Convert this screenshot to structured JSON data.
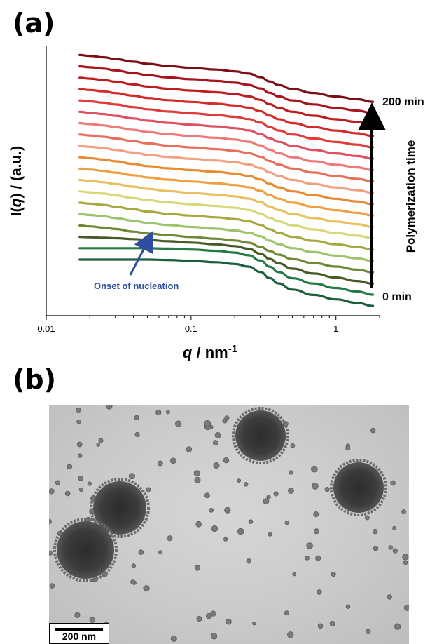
{
  "panels": {
    "a_label": "(a)",
    "b_label": "(b)"
  },
  "chart_data": {
    "type": "line",
    "xscale": "log",
    "xlim": [
      0.01,
      2
    ],
    "xticks": [
      {
        "value": 0.01,
        "label": "0.01"
      },
      {
        "value": 0.1,
        "label": "0.1"
      },
      {
        "value": 1,
        "label": "1"
      }
    ],
    "xlabel_italic": "q",
    "xlabel_rest": " / nm",
    "xlabel_sup": "-1",
    "ylabel_pre": "I(",
    "ylabel_italic": "q",
    "ylabel_post": ") / (a.u.)",
    "y_ticks_shown": false,
    "arrow_top_label": "200 min",
    "arrow_bottom_label": "0 min",
    "arrow_side_label": "Polymerization time",
    "annotation": "Onset of nucleation",
    "annotation_color": "#2f4ea0",
    "x": [
      0.017,
      0.02,
      0.025,
      0.03,
      0.04,
      0.05,
      0.07,
      0.1,
      0.15,
      0.2,
      0.25,
      0.3,
      0.35,
      0.4,
      0.5,
      0.7,
      1.0,
      1.4,
      1.8
    ],
    "series": [
      {
        "color": "#1d5e3e",
        "values": [
          0,
          0,
          0,
          0,
          0,
          0,
          0.01,
          0.03,
          0.06,
          0.1,
          0.16,
          0.28,
          0.42,
          0.54,
          0.68,
          0.8,
          0.9,
          0.98,
          1.05
        ]
      },
      {
        "color": "#237a45",
        "values": [
          0,
          0,
          0,
          0,
          0,
          0,
          0.01,
          0.03,
          0.06,
          0.1,
          0.16,
          0.28,
          0.42,
          0.54,
          0.68,
          0.8,
          0.9,
          0.98,
          1.05
        ]
      },
      {
        "color": "#4a5a26",
        "values": [
          0,
          0.01,
          0.02,
          0.03,
          0.05,
          0.07,
          0.1,
          0.13,
          0.17,
          0.21,
          0.27,
          0.38,
          0.5,
          0.6,
          0.72,
          0.83,
          0.92,
          1.0,
          1.06
        ]
      },
      {
        "color": "#6e8a36",
        "values": [
          0,
          0.02,
          0.05,
          0.08,
          0.14,
          0.18,
          0.22,
          0.26,
          0.3,
          0.34,
          0.39,
          0.48,
          0.58,
          0.66,
          0.76,
          0.85,
          0.93,
          1.0,
          1.06
        ]
      },
      {
        "color": "#9cc46a",
        "values": [
          0,
          0.02,
          0.05,
          0.09,
          0.15,
          0.2,
          0.25,
          0.29,
          0.33,
          0.37,
          0.42,
          0.5,
          0.6,
          0.68,
          0.77,
          0.86,
          0.94,
          1.0,
          1.06
        ]
      },
      {
        "color": "#a8a840",
        "values": [
          0,
          0.02,
          0.05,
          0.09,
          0.15,
          0.2,
          0.25,
          0.29,
          0.33,
          0.37,
          0.42,
          0.5,
          0.6,
          0.68,
          0.77,
          0.86,
          0.94,
          1.0,
          1.06
        ]
      },
      {
        "color": "#d8d878",
        "values": [
          0,
          0.02,
          0.05,
          0.09,
          0.15,
          0.2,
          0.25,
          0.29,
          0.33,
          0.37,
          0.42,
          0.5,
          0.6,
          0.68,
          0.77,
          0.86,
          0.94,
          1.0,
          1.06
        ]
      },
      {
        "color": "#e8c060",
        "values": [
          0,
          0.02,
          0.05,
          0.09,
          0.15,
          0.2,
          0.25,
          0.29,
          0.33,
          0.37,
          0.42,
          0.5,
          0.6,
          0.68,
          0.77,
          0.86,
          0.94,
          1.0,
          1.06
        ]
      },
      {
        "color": "#f0a040",
        "values": [
          0,
          0.02,
          0.05,
          0.09,
          0.15,
          0.2,
          0.25,
          0.29,
          0.33,
          0.37,
          0.42,
          0.5,
          0.6,
          0.68,
          0.77,
          0.86,
          0.94,
          1.0,
          1.06
        ]
      },
      {
        "color": "#e88a30",
        "values": [
          0,
          0.02,
          0.05,
          0.09,
          0.15,
          0.2,
          0.25,
          0.29,
          0.33,
          0.37,
          0.42,
          0.5,
          0.6,
          0.68,
          0.77,
          0.86,
          0.94,
          1.0,
          1.06
        ]
      },
      {
        "color": "#f2a080",
        "values": [
          0,
          0.02,
          0.05,
          0.09,
          0.15,
          0.2,
          0.25,
          0.29,
          0.33,
          0.37,
          0.42,
          0.5,
          0.6,
          0.68,
          0.77,
          0.86,
          0.94,
          1.0,
          1.06
        ]
      },
      {
        "color": "#e8705a",
        "values": [
          0,
          0.02,
          0.05,
          0.09,
          0.15,
          0.2,
          0.25,
          0.29,
          0.33,
          0.37,
          0.42,
          0.5,
          0.6,
          0.68,
          0.77,
          0.86,
          0.94,
          1.0,
          1.06
        ]
      },
      {
        "color": "#f07878",
        "values": [
          0,
          0.02,
          0.05,
          0.09,
          0.15,
          0.2,
          0.25,
          0.29,
          0.33,
          0.37,
          0.42,
          0.5,
          0.6,
          0.68,
          0.77,
          0.86,
          0.94,
          1.0,
          1.06
        ]
      },
      {
        "color": "#e05060",
        "values": [
          0,
          0.02,
          0.05,
          0.09,
          0.15,
          0.2,
          0.25,
          0.29,
          0.33,
          0.37,
          0.42,
          0.5,
          0.6,
          0.68,
          0.77,
          0.86,
          0.94,
          1.0,
          1.06
        ]
      },
      {
        "color": "#e03a3a",
        "values": [
          0,
          0.02,
          0.05,
          0.09,
          0.15,
          0.2,
          0.25,
          0.29,
          0.33,
          0.37,
          0.42,
          0.5,
          0.6,
          0.68,
          0.77,
          0.86,
          0.94,
          1.0,
          1.06
        ]
      },
      {
        "color": "#d42a2a",
        "values": [
          0,
          0.02,
          0.05,
          0.09,
          0.15,
          0.2,
          0.25,
          0.29,
          0.33,
          0.37,
          0.42,
          0.5,
          0.6,
          0.68,
          0.77,
          0.86,
          0.94,
          1.0,
          1.06
        ]
      },
      {
        "color": "#c01c20",
        "values": [
          0,
          0.02,
          0.05,
          0.09,
          0.15,
          0.2,
          0.25,
          0.29,
          0.33,
          0.37,
          0.42,
          0.5,
          0.6,
          0.68,
          0.77,
          0.86,
          0.94,
          1.0,
          1.06
        ]
      },
      {
        "color": "#a8141c",
        "values": [
          0,
          0.02,
          0.05,
          0.09,
          0.15,
          0.2,
          0.25,
          0.29,
          0.33,
          0.37,
          0.42,
          0.5,
          0.6,
          0.68,
          0.77,
          0.86,
          0.94,
          1.0,
          1.06
        ]
      },
      {
        "color": "#7e0e16",
        "values": [
          0,
          0.02,
          0.05,
          0.09,
          0.15,
          0.2,
          0.25,
          0.29,
          0.33,
          0.37,
          0.42,
          0.5,
          0.6,
          0.68,
          0.77,
          0.86,
          0.94,
          1.0,
          1.06
        ]
      }
    ]
  },
  "micrograph": {
    "scale_bar_label": "200 nm",
    "background_color": "#cdcdcd",
    "particle_color": "#3a3a3a"
  }
}
